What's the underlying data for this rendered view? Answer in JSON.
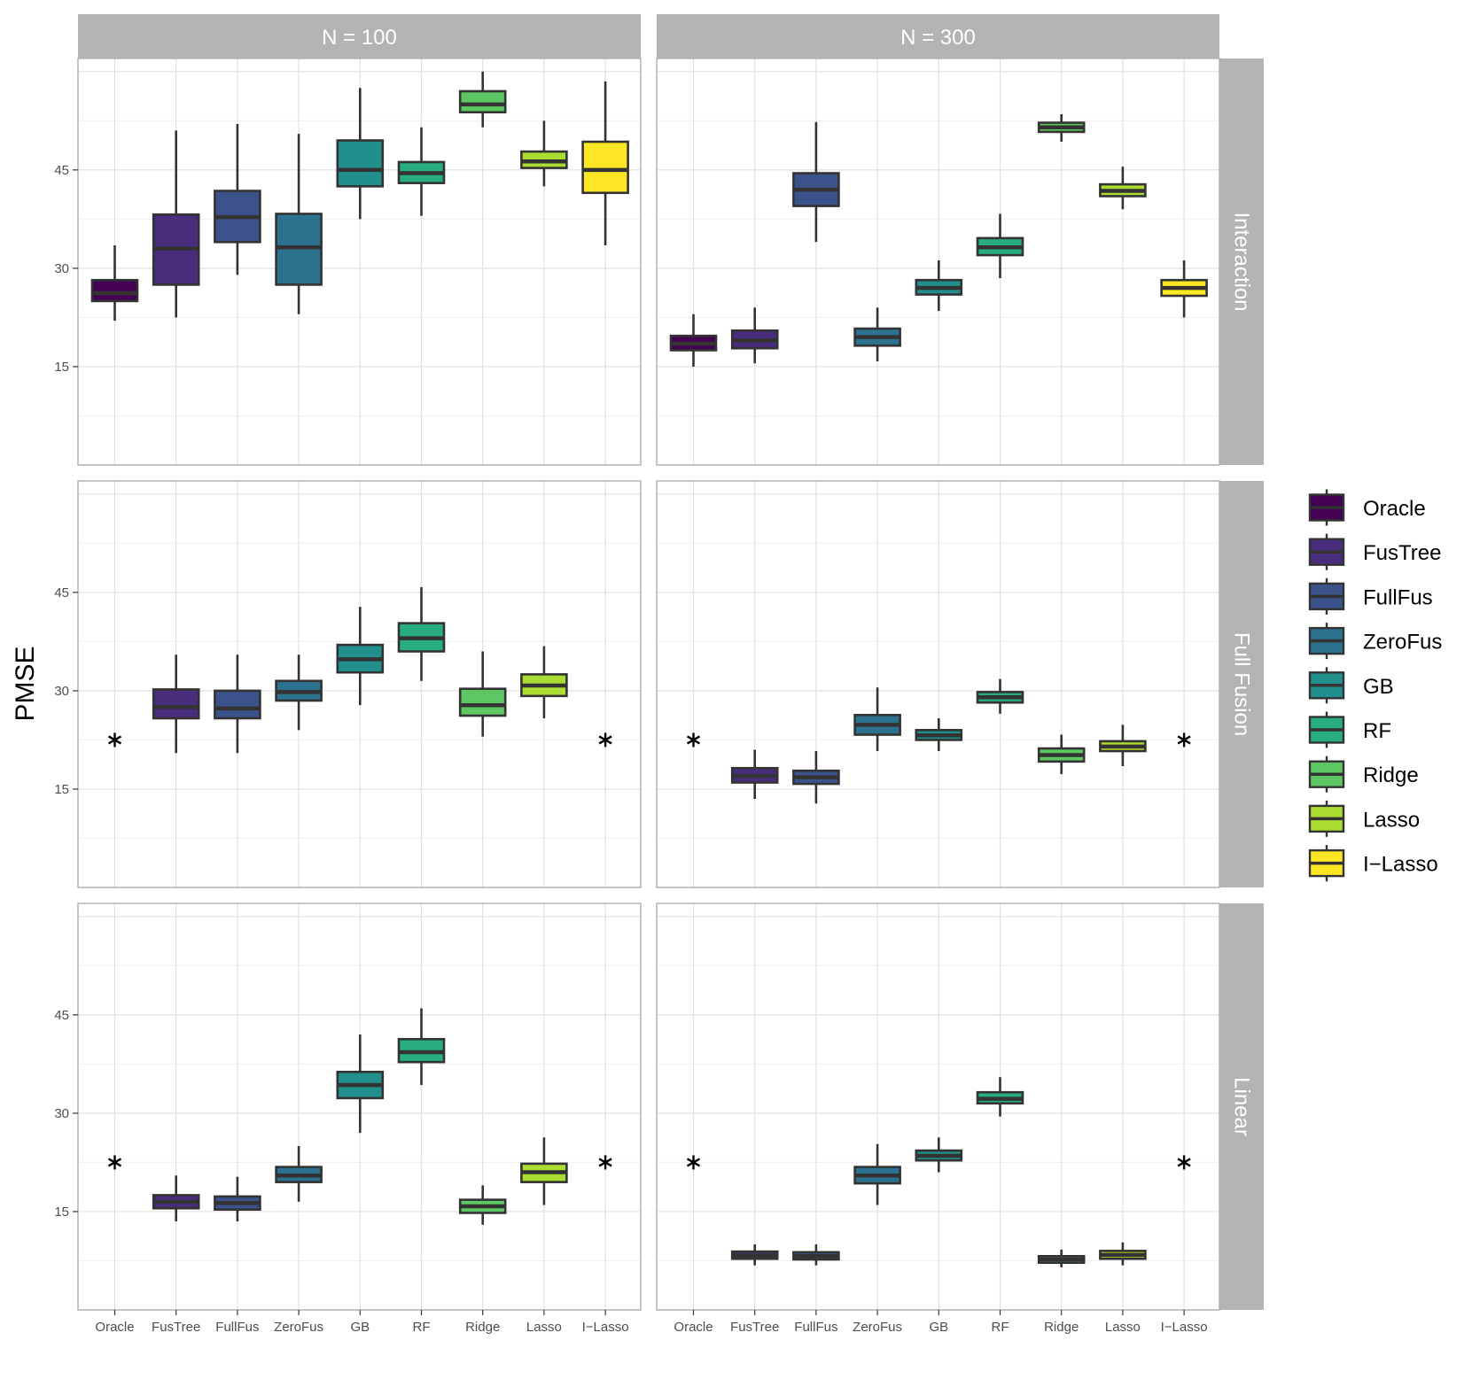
{
  "chart_data": {
    "type": "boxplot",
    "title": "",
    "xlabel": "",
    "ylabel": "PMSE",
    "ylim": [
      0,
      62
    ],
    "yticks": [
      15,
      30,
      45
    ],
    "methods": [
      "Oracle",
      "FusTree",
      "FullFus",
      "ZeroFus",
      "GB",
      "RF",
      "Ridge",
      "Lasso",
      "I−Lasso"
    ],
    "columns": [
      "N = 100",
      "N = 300"
    ],
    "rows": [
      "Interaction",
      "Full Fusion",
      "Linear"
    ],
    "missing_marker": "*",
    "missing_value_level": 22.5,
    "legend_position": "right",
    "colors": {
      "Oracle": "#440154",
      "FusTree": "#472D7B",
      "FullFus": "#3B528B",
      "ZeroFus": "#2C728E",
      "GB": "#21908C",
      "RF": "#27AD81",
      "Ridge": "#5DC863",
      "Lasso": "#AADC32",
      "I−Lasso": "#FDE725"
    },
    "legend": [
      "Oracle",
      "FusTree",
      "FullFus",
      "ZeroFus",
      "GB",
      "RF",
      "Ridge",
      "Lasso",
      "I−Lasso"
    ],
    "panels": [
      {
        "row": "Interaction",
        "col": "N = 100",
        "boxes": [
          {
            "method": "Oracle",
            "whisker_low": 22,
            "q1": 25,
            "median": 26.2,
            "q3": 28.2,
            "whisker_high": 33.5
          },
          {
            "method": "FusTree",
            "whisker_low": 22.5,
            "q1": 27.5,
            "median": 33,
            "q3": 38.2,
            "whisker_high": 51
          },
          {
            "method": "FullFus",
            "whisker_low": 29,
            "q1": 34,
            "median": 37.8,
            "q3": 41.8,
            "whisker_high": 52
          },
          {
            "method": "ZeroFus",
            "whisker_low": 23,
            "q1": 27.5,
            "median": 33.2,
            "q3": 38.3,
            "whisker_high": 50.5
          },
          {
            "method": "GB",
            "whisker_low": 37.5,
            "q1": 42.5,
            "median": 45,
            "q3": 49.5,
            "whisker_high": 57.5
          },
          {
            "method": "RF",
            "whisker_low": 38,
            "q1": 43,
            "median": 44.5,
            "q3": 46.2,
            "whisker_high": 51.5
          },
          {
            "method": "Ridge",
            "whisker_low": 51.5,
            "q1": 53.8,
            "median": 55,
            "q3": 57,
            "whisker_high": 60
          },
          {
            "method": "Lasso",
            "whisker_low": 42.5,
            "q1": 45.3,
            "median": 46.3,
            "q3": 47.8,
            "whisker_high": 52.5
          },
          {
            "method": "I−Lasso",
            "whisker_low": 33.5,
            "q1": 41.5,
            "median": 45,
            "q3": 49.3,
            "whisker_high": 58.5
          }
        ]
      },
      {
        "row": "Interaction",
        "col": "N = 300",
        "boxes": [
          {
            "method": "Oracle",
            "whisker_low": 15,
            "q1": 17.5,
            "median": 18.5,
            "q3": 19.7,
            "whisker_high": 23
          },
          {
            "method": "FusTree",
            "whisker_low": 15.5,
            "q1": 17.8,
            "median": 19,
            "q3": 20.5,
            "whisker_high": 24
          },
          {
            "method": "FullFus",
            "whisker_low": 34,
            "q1": 39.5,
            "median": 42,
            "q3": 44.5,
            "whisker_high": 52.3
          },
          {
            "method": "ZeroFus",
            "whisker_low": 15.8,
            "q1": 18.2,
            "median": 19.5,
            "q3": 20.8,
            "whisker_high": 24
          },
          {
            "method": "GB",
            "whisker_low": 23.5,
            "q1": 26,
            "median": 27,
            "q3": 28.2,
            "whisker_high": 31.2
          },
          {
            "method": "RF",
            "whisker_low": 28.5,
            "q1": 32,
            "median": 33.2,
            "q3": 34.6,
            "whisker_high": 38.3
          },
          {
            "method": "Ridge",
            "whisker_low": 49.3,
            "q1": 50.8,
            "median": 51.5,
            "q3": 52.2,
            "whisker_high": 53.5
          },
          {
            "method": "Lasso",
            "whisker_low": 39,
            "q1": 41,
            "median": 41.8,
            "q3": 42.8,
            "whisker_high": 45.5
          },
          {
            "method": "I−Lasso",
            "whisker_low": 22.5,
            "q1": 25.8,
            "median": 27,
            "q3": 28.2,
            "whisker_high": 31.2
          }
        ]
      },
      {
        "row": "Full Fusion",
        "col": "N = 100",
        "boxes": [
          {
            "method": "Oracle",
            "marker": "*"
          },
          {
            "method": "FusTree",
            "whisker_low": 20.5,
            "q1": 25.8,
            "median": 27.5,
            "q3": 30.2,
            "whisker_high": 35.5
          },
          {
            "method": "FullFus",
            "whisker_low": 20.5,
            "q1": 25.8,
            "median": 27.3,
            "q3": 30,
            "whisker_high": 35.5
          },
          {
            "method": "ZeroFus",
            "whisker_low": 24,
            "q1": 28.5,
            "median": 29.8,
            "q3": 31.5,
            "whisker_high": 35.5
          },
          {
            "method": "GB",
            "whisker_low": 27.8,
            "q1": 32.8,
            "median": 34.8,
            "q3": 37,
            "whisker_high": 42.8
          },
          {
            "method": "RF",
            "whisker_low": 31.5,
            "q1": 36,
            "median": 38,
            "q3": 40.3,
            "whisker_high": 45.8
          },
          {
            "method": "Ridge",
            "whisker_low": 23,
            "q1": 26.2,
            "median": 27.8,
            "q3": 30.3,
            "whisker_high": 36
          },
          {
            "method": "Lasso",
            "whisker_low": 25.8,
            "q1": 29.2,
            "median": 30.8,
            "q3": 32.5,
            "whisker_high": 36.8
          },
          {
            "method": "I−Lasso",
            "marker": "*"
          }
        ]
      },
      {
        "row": "Full Fusion",
        "col": "N = 300",
        "boxes": [
          {
            "method": "Oracle",
            "marker": "*"
          },
          {
            "method": "FusTree",
            "whisker_low": 13.5,
            "q1": 16,
            "median": 17,
            "q3": 18.2,
            "whisker_high": 21
          },
          {
            "method": "FullFus",
            "whisker_low": 12.8,
            "q1": 15.8,
            "median": 16.8,
            "q3": 17.8,
            "whisker_high": 20.8
          },
          {
            "method": "ZeroFus",
            "whisker_low": 20.8,
            "q1": 23.3,
            "median": 24.8,
            "q3": 26.3,
            "whisker_high": 30.5
          },
          {
            "method": "GB",
            "whisker_low": 20.8,
            "q1": 22.5,
            "median": 23.2,
            "q3": 24,
            "whisker_high": 25.8
          },
          {
            "method": "RF",
            "whisker_low": 26.5,
            "q1": 28.2,
            "median": 29,
            "q3": 29.8,
            "whisker_high": 31.8
          },
          {
            "method": "Ridge",
            "whisker_low": 17.3,
            "q1": 19.2,
            "median": 20.2,
            "q3": 21.2,
            "whisker_high": 23.3
          },
          {
            "method": "Lasso",
            "whisker_low": 18.5,
            "q1": 20.8,
            "median": 21.5,
            "q3": 22.3,
            "whisker_high": 24.8
          },
          {
            "method": "I−Lasso",
            "marker": "*"
          }
        ]
      },
      {
        "row": "Linear",
        "col": "N = 100",
        "boxes": [
          {
            "method": "Oracle",
            "marker": "*"
          },
          {
            "method": "FusTree",
            "whisker_low": 13.5,
            "q1": 15.5,
            "median": 16.5,
            "q3": 17.5,
            "whisker_high": 20.5
          },
          {
            "method": "FullFus",
            "whisker_low": 13.5,
            "q1": 15.3,
            "median": 16.3,
            "q3": 17.3,
            "whisker_high": 20.3
          },
          {
            "method": "ZeroFus",
            "whisker_low": 16.5,
            "q1": 19.5,
            "median": 20.5,
            "q3": 21.8,
            "whisker_high": 25
          },
          {
            "method": "GB",
            "whisker_low": 27,
            "q1": 32.3,
            "median": 34.3,
            "q3": 36.3,
            "whisker_high": 42
          },
          {
            "method": "RF",
            "whisker_low": 34.3,
            "q1": 37.8,
            "median": 39.3,
            "q3": 41.3,
            "whisker_high": 46
          },
          {
            "method": "Ridge",
            "whisker_low": 13,
            "q1": 14.8,
            "median": 15.8,
            "q3": 16.8,
            "whisker_high": 19
          },
          {
            "method": "Lasso",
            "whisker_low": 16,
            "q1": 19.5,
            "median": 21,
            "q3": 22.3,
            "whisker_high": 26.3
          },
          {
            "method": "I−Lasso",
            "marker": "*"
          }
        ]
      },
      {
        "row": "Linear",
        "col": "N = 300",
        "boxes": [
          {
            "method": "Oracle",
            "marker": "*"
          },
          {
            "method": "FusTree",
            "whisker_low": 6.8,
            "q1": 7.8,
            "median": 8.3,
            "q3": 8.9,
            "whisker_high": 10
          },
          {
            "method": "FullFus",
            "whisker_low": 6.8,
            "q1": 7.7,
            "median": 8.2,
            "q3": 8.8,
            "whisker_high": 10
          },
          {
            "method": "ZeroFus",
            "whisker_low": 16,
            "q1": 19.3,
            "median": 20.5,
            "q3": 21.8,
            "whisker_high": 25.3
          },
          {
            "method": "GB",
            "whisker_low": 21,
            "q1": 22.8,
            "median": 23.5,
            "q3": 24.3,
            "whisker_high": 26.3
          },
          {
            "method": "RF",
            "whisker_low": 29.5,
            "q1": 31.5,
            "median": 32.2,
            "q3": 33.2,
            "whisker_high": 35.5
          },
          {
            "method": "Ridge",
            "whisker_low": 6.5,
            "q1": 7.2,
            "median": 7.7,
            "q3": 8.2,
            "whisker_high": 9.2
          },
          {
            "method": "Lasso",
            "whisker_low": 6.8,
            "q1": 7.8,
            "median": 8.4,
            "q3": 9,
            "whisker_high": 10.3
          },
          {
            "method": "I−Lasso",
            "marker": "*"
          }
        ]
      }
    ]
  }
}
